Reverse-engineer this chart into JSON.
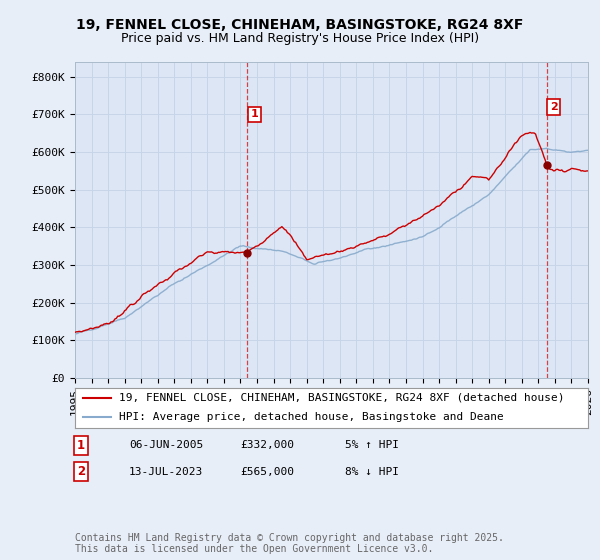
{
  "title": "19, FENNEL CLOSE, CHINEHAM, BASINGSTOKE, RG24 8XF",
  "subtitle": "Price paid vs. HM Land Registry's House Price Index (HPI)",
  "ylabel_ticks": [
    "£0",
    "£100K",
    "£200K",
    "£300K",
    "£400K",
    "£500K",
    "£600K",
    "£700K",
    "£800K"
  ],
  "ytick_vals": [
    0,
    100000,
    200000,
    300000,
    400000,
    500000,
    600000,
    700000,
    800000
  ],
  "ylim": [
    0,
    840000
  ],
  "xlim_start": 1995,
  "xlim_end": 2026,
  "grid_color": "#c8d4e8",
  "bg_color": "#e8eef8",
  "plot_bg_color": "#dce6f5",
  "line1_color": "#cc0000",
  "line2_color": "#88aacc",
  "dashed_color": "#cc0000",
  "sale1_year": 2005.43,
  "sale1_price": 332000,
  "sale2_year": 2023.53,
  "sale2_price": 565000,
  "legend_label1": "19, FENNEL CLOSE, CHINEHAM, BASINGSTOKE, RG24 8XF (detached house)",
  "legend_label2": "HPI: Average price, detached house, Basingstoke and Deane",
  "table_row1": [
    "1",
    "06-JUN-2005",
    "£332,000",
    "5% ↑ HPI"
  ],
  "table_row2": [
    "2",
    "13-JUL-2023",
    "£565,000",
    "8% ↓ HPI"
  ],
  "copyright_text": "Contains HM Land Registry data © Crown copyright and database right 2025.\nThis data is licensed under the Open Government Licence v3.0.",
  "title_fontsize": 10,
  "subtitle_fontsize": 9,
  "tick_fontsize": 8,
  "legend_fontsize": 8,
  "table_fontsize": 8,
  "copyright_fontsize": 7
}
